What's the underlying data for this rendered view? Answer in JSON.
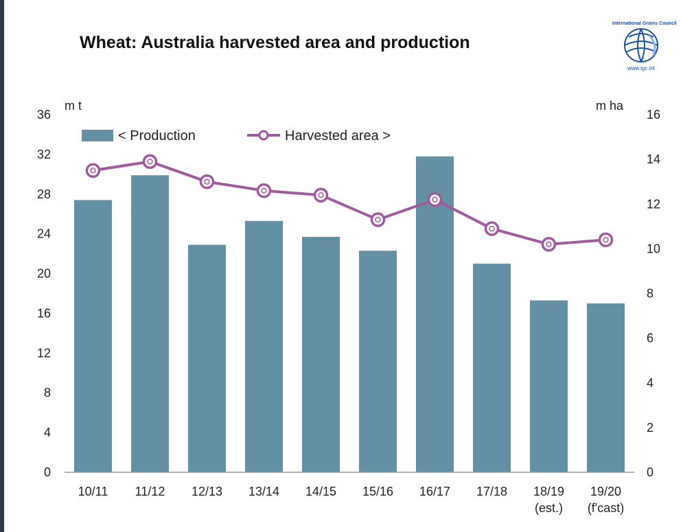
{
  "logo": {
    "org": "International Grains Council",
    "url": "www.igc.int"
  },
  "colors": {
    "bar": "#6390a5",
    "line": "#a05b9e",
    "marker_fill": "#ffffff"
  },
  "chart_data": {
    "type": "bar",
    "title": "Wheat: Australia harvested area and production",
    "left_unit": "m t",
    "right_unit": "m ha",
    "categories": [
      [
        "10/11"
      ],
      [
        "11/12"
      ],
      [
        "12/13"
      ],
      [
        "13/14"
      ],
      [
        "14/15"
      ],
      [
        "15/16"
      ],
      [
        "16/17"
      ],
      [
        "17/18"
      ],
      [
        "18/19",
        "(est.)"
      ],
      [
        "19/20",
        "(f'cast)"
      ]
    ],
    "left_axis": {
      "min": 0,
      "max": 36,
      "ticks": [
        0,
        4,
        8,
        12,
        16,
        20,
        24,
        28,
        32,
        36
      ]
    },
    "right_axis": {
      "min": 0,
      "max": 16,
      "ticks": [
        0,
        2,
        4,
        6,
        8,
        10,
        12,
        14,
        16
      ]
    },
    "series": [
      {
        "name": "< Production",
        "type": "bar",
        "axis": "left",
        "values": [
          27.4,
          29.9,
          22.9,
          25.3,
          23.7,
          22.3,
          31.8,
          21.0,
          17.3,
          17.0
        ]
      },
      {
        "name": "Harvested area >",
        "type": "line",
        "axis": "right",
        "values": [
          13.5,
          13.9,
          13.0,
          12.6,
          12.4,
          11.3,
          12.2,
          10.9,
          10.2,
          10.4
        ]
      }
    ],
    "legend_position": "top-left",
    "grid": false
  }
}
